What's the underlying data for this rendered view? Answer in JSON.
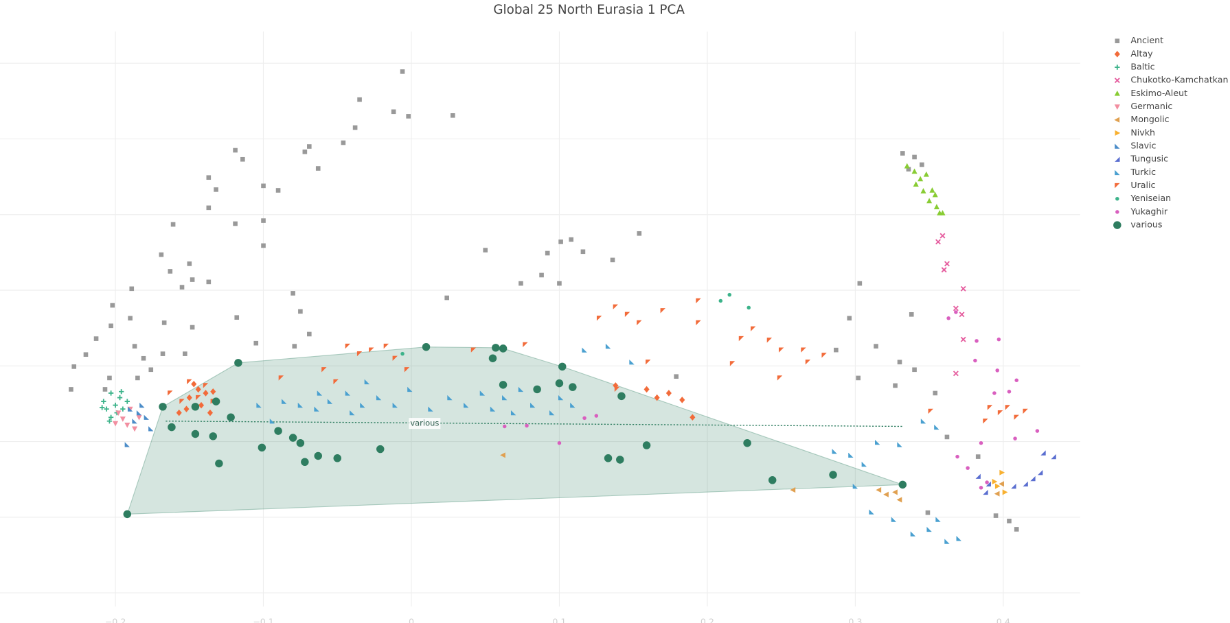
{
  "chart_data": {
    "type": "scatter",
    "title": "Global 25 North Eurasia 1 PCA",
    "xlim": [
      -0.278,
      0.452
    ],
    "ylim": [
      -0.218,
      0.542
    ],
    "xticks": [
      {
        "value": -0.2,
        "label": "−0.2"
      },
      {
        "value": -0.1,
        "label": "−0.1"
      },
      0,
      0.1,
      0.2,
      0.3,
      0.4
    ],
    "yticks": [
      -0.2,
      -0.1,
      0,
      0.1,
      0.2,
      0.3,
      0.4,
      0.5
    ],
    "show_ytick_labels": false,
    "grid": true,
    "legend": "top-right",
    "hull_series": "various",
    "trend_line": {
      "x": [
        -0.166,
        0.332
      ],
      "y": [
        0.027,
        0.02
      ],
      "color": "#2e7d60"
    },
    "annotations": [
      {
        "text": "various",
        "x": 0.009,
        "y": 0.024
      }
    ],
    "series": [
      {
        "name": "Ancient",
        "color": "#999999",
        "symbol": "square",
        "x": [
          -0.006,
          -0.035,
          -0.012,
          -0.002,
          0.028,
          -0.038,
          -0.046,
          -0.069,
          -0.072,
          -0.063,
          -0.119,
          -0.114,
          -0.137,
          -0.132,
          -0.137,
          -0.1,
          -0.09,
          -0.1,
          -0.119,
          -0.1,
          -0.161,
          -0.169,
          -0.163,
          -0.155,
          -0.15,
          -0.148,
          -0.137,
          -0.189,
          -0.202,
          -0.203,
          -0.213,
          -0.22,
          -0.228,
          -0.23,
          -0.204,
          -0.207,
          -0.187,
          -0.181,
          -0.176,
          -0.168,
          -0.185,
          -0.19,
          -0.167,
          -0.118,
          -0.08,
          -0.075,
          -0.105,
          -0.079,
          -0.069,
          0.024,
          0.05,
          0.092,
          0.101,
          0.108,
          0.116,
          0.136,
          0.154,
          0.074,
          0.088,
          0.1,
          0.303,
          0.296,
          0.338,
          0.332,
          0.34,
          0.345,
          0.336,
          0.314,
          0.33,
          0.34,
          0.302,
          0.354,
          0.327,
          0.287,
          0.362,
          0.383,
          0.395,
          0.404,
          0.409,
          0.349,
          0.179,
          -0.148,
          -0.153
        ],
        "y": [
          0.489,
          0.452,
          0.436,
          0.43,
          0.431,
          0.415,
          0.395,
          0.39,
          0.383,
          0.361,
          0.385,
          0.373,
          0.349,
          0.333,
          0.309,
          0.338,
          0.332,
          0.292,
          0.288,
          0.259,
          0.287,
          0.247,
          0.225,
          0.204,
          0.235,
          0.214,
          0.211,
          0.202,
          0.18,
          0.153,
          0.136,
          0.115,
          0.099,
          0.069,
          0.084,
          0.069,
          0.126,
          0.11,
          0.095,
          0.116,
          0.084,
          0.163,
          0.157,
          0.164,
          0.196,
          0.172,
          0.13,
          0.126,
          0.142,
          0.19,
          0.253,
          0.249,
          0.264,
          0.267,
          0.251,
          0.24,
          0.275,
          0.209,
          0.22,
          0.209,
          0.209,
          0.163,
          0.168,
          0.381,
          0.376,
          0.366,
          0.36,
          0.126,
          0.105,
          0.095,
          0.084,
          0.064,
          0.074,
          0.121,
          0.006,
          -0.02,
          -0.098,
          -0.105,
          -0.116,
          -0.094,
          0.086,
          0.151,
          0.116
        ]
      },
      {
        "name": "Altay",
        "color": "#f26b3a",
        "symbol": "diamond",
        "x": [
          -0.144,
          -0.15,
          -0.139,
          -0.152,
          -0.142,
          -0.134,
          -0.147,
          0.159,
          0.166,
          0.174,
          0.183,
          0.19,
          0.138,
          -0.157,
          -0.136
        ],
        "y": [
          0.069,
          0.058,
          0.064,
          0.043,
          0.048,
          0.066,
          0.076,
          0.069,
          0.058,
          0.064,
          0.055,
          0.032,
          0.074,
          0.038,
          0.038
        ]
      },
      {
        "name": "Baltic",
        "color": "#3cb38a",
        "symbol": "cross",
        "x": [
          -0.208,
          -0.203,
          -0.197,
          -0.206,
          -0.2,
          -0.195,
          -0.203,
          -0.192,
          -0.199,
          -0.204,
          -0.196,
          -0.209
        ],
        "y": [
          0.053,
          0.064,
          0.058,
          0.043,
          0.048,
          0.043,
          0.032,
          0.053,
          0.038,
          0.027,
          0.066,
          0.045
        ]
      },
      {
        "name": "Chukotko-Kamchatkan",
        "color": "#e55c9e",
        "symbol": "x",
        "x": [
          0.359,
          0.356,
          0.362,
          0.36,
          0.373,
          0.368,
          0.372,
          0.373,
          0.368
        ],
        "y": [
          0.272,
          0.264,
          0.235,
          0.227,
          0.202,
          0.176,
          0.168,
          0.135,
          0.09
        ]
      },
      {
        "name": "Eskimo-Aleut",
        "color": "#88cc33",
        "symbol": "triangle-up",
        "x": [
          0.335,
          0.34,
          0.348,
          0.341,
          0.346,
          0.352,
          0.354,
          0.35,
          0.355,
          0.357,
          0.359,
          0.344
        ],
        "y": [
          0.364,
          0.357,
          0.353,
          0.34,
          0.331,
          0.332,
          0.326,
          0.318,
          0.31,
          0.302,
          0.302,
          0.347
        ]
      },
      {
        "name": "Germanic",
        "color": "#f28ea0",
        "symbol": "triangle-down",
        "x": [
          -0.198,
          -0.192,
          -0.2,
          -0.187,
          -0.195,
          -0.19,
          -0.184
        ],
        "y": [
          0.038,
          0.022,
          0.024,
          0.017,
          0.03,
          0.043,
          0.032
        ]
      },
      {
        "name": "Mongolic",
        "color": "#e0a050",
        "symbol": "triangle-left",
        "x": [
          0.062,
          0.258,
          0.316,
          0.321,
          0.327,
          0.33,
          0.399,
          0.396
        ],
        "y": [
          -0.018,
          -0.064,
          -0.064,
          -0.07,
          -0.067,
          -0.077,
          -0.056,
          -0.069
        ]
      },
      {
        "name": "Nivkh",
        "color": "#f8b030",
        "symbol": "triangle-right",
        "x": [
          0.399,
          0.396,
          0.401,
          0.394
        ],
        "y": [
          -0.041,
          -0.059,
          -0.067,
          -0.053
        ]
      },
      {
        "name": "Slavic",
        "color": "#4b8cc8",
        "symbol": "triangle-sw",
        "x": [
          -0.19,
          -0.184,
          -0.179,
          -0.192,
          -0.176,
          -0.182,
          -0.187
        ],
        "y": [
          0.043,
          0.038,
          0.032,
          -0.004,
          0.017,
          0.048,
          0.027
        ]
      },
      {
        "name": "Tungusic",
        "color": "#5a6ed0",
        "symbol": "triangle-se",
        "x": [
          0.415,
          0.42,
          0.425,
          0.427,
          0.434,
          0.407,
          0.39,
          0.383,
          0.388
        ],
        "y": [
          -0.056,
          -0.049,
          -0.041,
          -0.015,
          -0.02,
          -0.059,
          -0.056,
          -0.046,
          -0.067
        ]
      },
      {
        "name": "Turkic",
        "color": "#4aa0d0",
        "symbol": "triangle-sw",
        "x": [
          -0.103,
          -0.094,
          -0.086,
          -0.075,
          -0.064,
          -0.062,
          -0.055,
          -0.043,
          -0.04,
          -0.033,
          -0.03,
          -0.022,
          -0.011,
          -0.001,
          0.013,
          0.026,
          0.037,
          0.048,
          0.055,
          0.063,
          0.069,
          0.074,
          0.082,
          0.095,
          0.101,
          0.109,
          0.117,
          0.133,
          0.149,
          0.286,
          0.297,
          0.306,
          0.315,
          0.33,
          0.311,
          0.326,
          0.339,
          0.35,
          0.356,
          0.362,
          0.37,
          0.3,
          0.346,
          0.355
        ],
        "y": [
          0.048,
          0.027,
          0.053,
          0.048,
          0.043,
          0.064,
          0.053,
          0.064,
          0.038,
          0.048,
          0.079,
          0.058,
          0.048,
          0.069,
          0.043,
          0.058,
          0.048,
          0.064,
          0.043,
          0.058,
          0.038,
          0.069,
          0.048,
          0.038,
          0.058,
          0.048,
          0.121,
          0.126,
          0.105,
          -0.013,
          -0.018,
          -0.03,
          -0.001,
          -0.004,
          -0.093,
          -0.103,
          -0.122,
          -0.116,
          -0.103,
          -0.132,
          -0.128,
          -0.059,
          0.027,
          0.019
        ]
      },
      {
        "name": "Uralic",
        "color": "#f26b3a",
        "symbol": "triangle-nw",
        "x": [
          -0.15,
          -0.144,
          -0.155,
          -0.163,
          -0.139,
          -0.134,
          -0.043,
          -0.035,
          -0.027,
          -0.017,
          -0.011,
          -0.059,
          -0.051,
          -0.088,
          -0.003,
          0.042,
          0.077,
          0.127,
          0.138,
          0.146,
          0.154,
          0.17,
          0.194,
          0.194,
          0.223,
          0.231,
          0.242,
          0.25,
          0.265,
          0.279,
          0.268,
          0.217,
          0.249,
          0.351,
          0.391,
          0.398,
          0.403,
          0.409,
          0.415,
          0.388,
          0.16,
          0.139
        ],
        "y": [
          0.079,
          0.058,
          0.053,
          0.064,
          0.074,
          0.053,
          0.126,
          0.116,
          0.121,
          0.126,
          0.11,
          0.095,
          0.079,
          0.084,
          0.095,
          0.121,
          0.128,
          0.163,
          0.178,
          0.168,
          0.157,
          0.173,
          0.186,
          0.157,
          0.136,
          0.149,
          0.134,
          0.121,
          0.121,
          0.114,
          0.105,
          0.103,
          0.084,
          0.04,
          0.045,
          0.038,
          0.045,
          0.032,
          0.04,
          0.027,
          0.105,
          0.069
        ]
      },
      {
        "name": "Yeniseian",
        "color": "#3cb38a",
        "symbol": "circle",
        "x": [
          -0.006,
          0.209,
          0.215,
          0.228
        ],
        "y": [
          0.116,
          0.186,
          0.194,
          0.177
        ]
      },
      {
        "name": "Yukaghir",
        "color": "#d95fbf",
        "symbol": "circle",
        "x": [
          0.063,
          0.078,
          0.1,
          0.117,
          0.125,
          0.363,
          0.368,
          0.382,
          0.397,
          0.396,
          0.409,
          0.404,
          0.394,
          0.423,
          0.408,
          0.385,
          0.369,
          0.376,
          0.385,
          0.389,
          0.381
        ],
        "y": [
          0.02,
          0.021,
          -0.002,
          0.031,
          0.034,
          0.163,
          0.171,
          0.133,
          0.135,
          0.094,
          0.081,
          0.066,
          0.064,
          0.014,
          0.004,
          -0.002,
          -0.02,
          -0.035,
          -0.061,
          -0.054,
          0.107
        ]
      },
      {
        "name": "various",
        "color": "#2e7d60",
        "symbol": "circle-large",
        "x": [
          -0.192,
          -0.168,
          -0.162,
          -0.146,
          -0.146,
          -0.134,
          -0.132,
          -0.13,
          -0.122,
          -0.117,
          -0.101,
          -0.09,
          -0.08,
          -0.075,
          -0.072,
          -0.063,
          -0.05,
          -0.021,
          0.01,
          0.055,
          0.057,
          0.062,
          0.062,
          0.085,
          0.1,
          0.102,
          0.109,
          0.133,
          0.141,
          0.142,
          0.159,
          0.227,
          0.244,
          0.285,
          0.332
        ],
        "y": [
          -0.096,
          0.046,
          0.019,
          0.046,
          0.01,
          0.007,
          0.053,
          -0.029,
          0.032,
          0.104,
          -0.008,
          0.014,
          0.005,
          -0.002,
          -0.027,
          -0.019,
          -0.022,
          -0.01,
          0.125,
          0.11,
          0.124,
          0.123,
          0.075,
          0.069,
          0.077,
          0.099,
          0.072,
          -0.022,
          -0.024,
          0.06,
          -0.005,
          -0.002,
          -0.051,
          -0.044,
          -0.057
        ]
      }
    ]
  }
}
